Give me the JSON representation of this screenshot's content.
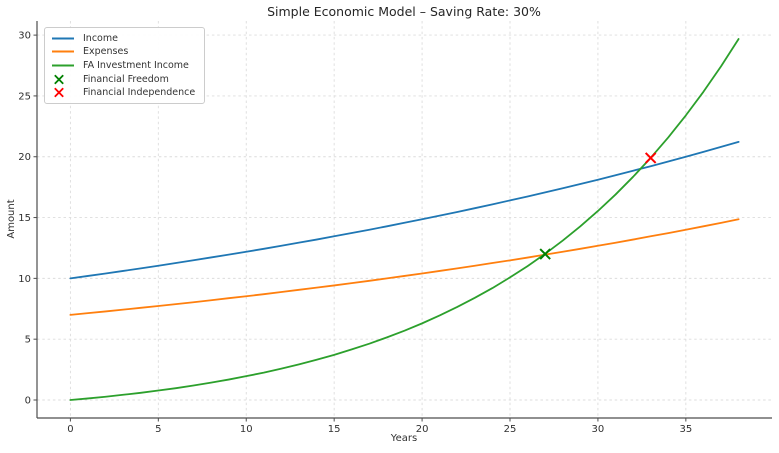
{
  "chart_data": {
    "type": "line",
    "title": "Simple Economic Model – Saving Rate: 30%",
    "xlabel": "Years",
    "ylabel": "Amount",
    "x": [
      0,
      1,
      2,
      3,
      4,
      5,
      6,
      7,
      8,
      9,
      10,
      11,
      12,
      13,
      14,
      15,
      16,
      17,
      18,
      19,
      20,
      21,
      22,
      23,
      24,
      25,
      26,
      27,
      28,
      29,
      30,
      31,
      32,
      33,
      34,
      35,
      36,
      37,
      38
    ],
    "series": [
      {
        "name": "Income",
        "color": "#1f77b4",
        "values": [
          10.0,
          10.2,
          10.4,
          10.61,
          10.82,
          11.04,
          11.26,
          11.49,
          11.72,
          11.95,
          12.19,
          12.43,
          12.68,
          12.94,
          13.19,
          13.46,
          13.73,
          14.0,
          14.28,
          14.57,
          14.86,
          15.16,
          15.46,
          15.77,
          16.08,
          16.41,
          16.73,
          17.07,
          17.41,
          17.76,
          18.11,
          18.48,
          18.85,
          19.22,
          19.61,
          20.0,
          20.4,
          20.81,
          21.22
        ]
      },
      {
        "name": "Expenses",
        "color": "#ff7f0e",
        "values": [
          7.0,
          7.14,
          7.28,
          7.43,
          7.58,
          7.73,
          7.88,
          8.04,
          8.2,
          8.37,
          8.53,
          8.7,
          8.88,
          9.06,
          9.24,
          9.42,
          9.61,
          9.8,
          10.0,
          10.2,
          10.4,
          10.61,
          10.82,
          11.04,
          11.26,
          11.48,
          11.71,
          11.95,
          12.19,
          12.43,
          12.68,
          12.93,
          13.19,
          13.46,
          13.72,
          14.0,
          14.28,
          14.56,
          14.86
        ]
      },
      {
        "name": "FA Investment Income",
        "color": "#2ca02c",
        "values": [
          0.0,
          0.13,
          0.27,
          0.43,
          0.59,
          0.78,
          0.97,
          1.19,
          1.43,
          1.68,
          1.96,
          2.25,
          2.58,
          2.93,
          3.31,
          3.71,
          4.16,
          4.63,
          5.15,
          5.7,
          6.3,
          6.95,
          7.65,
          8.4,
          9.2,
          10.08,
          11.01,
          12.02,
          13.11,
          14.28,
          15.54,
          16.89,
          18.35,
          19.91,
          21.59,
          23.4,
          25.34,
          27.43,
          29.68
        ]
      }
    ],
    "markers": [
      {
        "name": "Financial Freedom",
        "x": 27,
        "y": 12.0,
        "color": "#008000"
      },
      {
        "name": "Financial Independence",
        "x": 33,
        "y": 19.9,
        "color": "#ff0000"
      }
    ],
    "xlim": [
      -1.9,
      39.9
    ],
    "ylim": [
      -1.48,
      31.16
    ],
    "xticks": [
      0,
      5,
      10,
      15,
      20,
      25,
      30,
      35
    ],
    "yticks": [
      0,
      5,
      10,
      15,
      20,
      25,
      30
    ],
    "grid": true,
    "legend_position": "upper-left"
  },
  "style_colors": {
    "grid": "#dcdcdc",
    "spine": "#4d4d4d",
    "tick_label": "#303030",
    "title": "#262626",
    "background": "#ffffff"
  }
}
